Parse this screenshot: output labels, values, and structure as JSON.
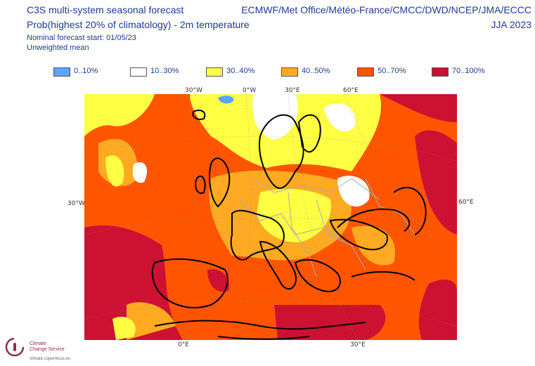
{
  "header": {
    "title_line1": "C3S multi-system seasonal forecast",
    "title_line2": "Prob(highest 20% of climatology) - 2m temperature",
    "nominal_start": "Nominal forecast start: 01/05/23",
    "weighting": "Unweighted mean",
    "systems": "ECMWF/Met Office/Météo-France/CMCC/DWD/NCEP/JMA/ECCC",
    "season": "JJA 2023"
  },
  "legend": [
    {
      "label": "0..10%",
      "color": "#5aa5ff"
    },
    {
      "label": "10..30%",
      "color": "#ffffff"
    },
    {
      "label": "30..40%",
      "color": "#ffff44"
    },
    {
      "label": "40..50%",
      "color": "#ffaa22"
    },
    {
      "label": "50..70%",
      "color": "#ff5500"
    },
    {
      "label": "70..100%",
      "color": "#cc1133"
    }
  ],
  "graticule": {
    "top": [
      "30°W",
      "0°W",
      "30°E",
      "60°E"
    ],
    "left": "30°W",
    "right": "60°E",
    "bottom": [
      "0°E",
      "30°E"
    ]
  },
  "logo": {
    "line1": "Climate",
    "line2": "Change Service",
    "url": "climate.copernicus.eu",
    "icon": "climate-change-service-logo-icon"
  },
  "map_layers": {
    "background": "#ff5500",
    "icons": [
      "coastline-icon",
      "border-icon",
      "graticule-icon"
    ]
  }
}
